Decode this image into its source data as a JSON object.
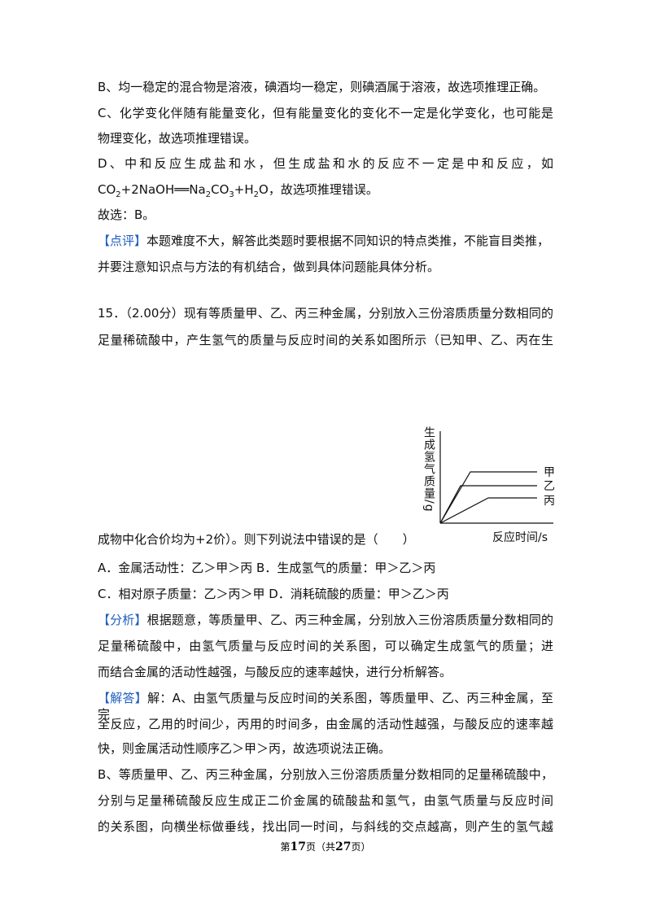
{
  "lines": [
    {
      "text": "B、均一稳定的混合物是溶液，碘酒均一稳定，则碘酒属于溶液，故选项推理正确。"
    },
    {
      "text": "C、化学变化伴随有能量变化，但有能量变化的变化不一定是化学变化，也可能是"
    },
    {
      "text": "物理变化，故选项推理错误。"
    },
    {
      "text": "D、中和反应生成盐和水，但生成盐和水的反应不一定是中和反应，如"
    },
    {
      "parts": [
        {
          "text": "CO"
        },
        {
          "text": "2",
          "sub": true
        },
        {
          "text": "+2NaOH══Na"
        },
        {
          "text": "2",
          "sub": true
        },
        {
          "text": "CO"
        },
        {
          "text": "3",
          "sub": true
        },
        {
          "text": "+H"
        },
        {
          "text": "2",
          "sub": true
        },
        {
          "text": "O"
        },
        {
          "text": "，故选项推理错误。"
        }
      ]
    },
    {
      "text": "故选：B。"
    },
    {
      "tag": "【点评】",
      "text": "本题难度不大，解答此类题时要根据不同知识的特点类推，不能盲目类推，"
    },
    {
      "text": "并要注意知识点与方法的有机结合，做到具体问题能具体分析。"
    },
    {
      "text": "15．（2.00分）现有等质量甲、乙、丙三种金属，分别放入三份溶质质量分数相同的"
    },
    {
      "text": "足量稀硫酸中，产生氢气的质量与反应时间的关系如图所示（已知甲、乙、丙在生"
    },
    {
      "text": "成物中化合价均为+2价）。则下列说法中错误的是（　　）"
    },
    {
      "text": "A．金属活动性：乙＞甲＞丙 B．生成氢气的质量：甲＞乙＞丙"
    },
    {
      "text": "C．相对原子质量：乙＞丙＞甲 D．消耗硫酸的质量：甲＞乙＞丙"
    },
    {
      "tag": "【分析】",
      "text": "根据题意，等质量甲、乙、丙三种金属，分别放入三份溶质质量分数相同的"
    },
    {
      "text": "足量稀硫酸中，由氢气质量与反应时间的关系图，可以确定生成氢气的质量；进"
    },
    {
      "text": "而结合金属的活动性越强，与酸反应的速率越快，进行分析解答。"
    },
    {
      "tag": "【解答】",
      "text": "解：A、由氢气质量与反应时间的关系图，等质量甲、乙、丙三种金属，至完"
    },
    {
      "text": "全反应，乙用的时间少，丙用的时间多，由金属的活动性越强，与酸反应的速率越"
    },
    {
      "text": "快，则金属活动性顺序乙＞甲＞丙，故选项说法正确。"
    },
    {
      "text": "B、等质量甲、乙、丙三种金属，分别放入三份溶质质量分数相同的足量稀硫酸中，"
    },
    {
      "text": "分别与足量稀硫酸反应生成正二价金属的硫酸盐和氢气，由氢气质量与反应时间"
    },
    {
      "text": "的关系图，向横坐标做垂线，找出同一时间，与斜线的交点越高，则产生的氢气越"
    }
  ],
  "diagram": {
    "y_label": "生成氢气质量/g",
    "x_label": "反应时间/s",
    "series": [
      "甲",
      "乙",
      "丙"
    ]
  },
  "footer": {
    "prefix": "第",
    "page": "17",
    "middle": "页（共",
    "total": "27",
    "suffix": "页）"
  }
}
